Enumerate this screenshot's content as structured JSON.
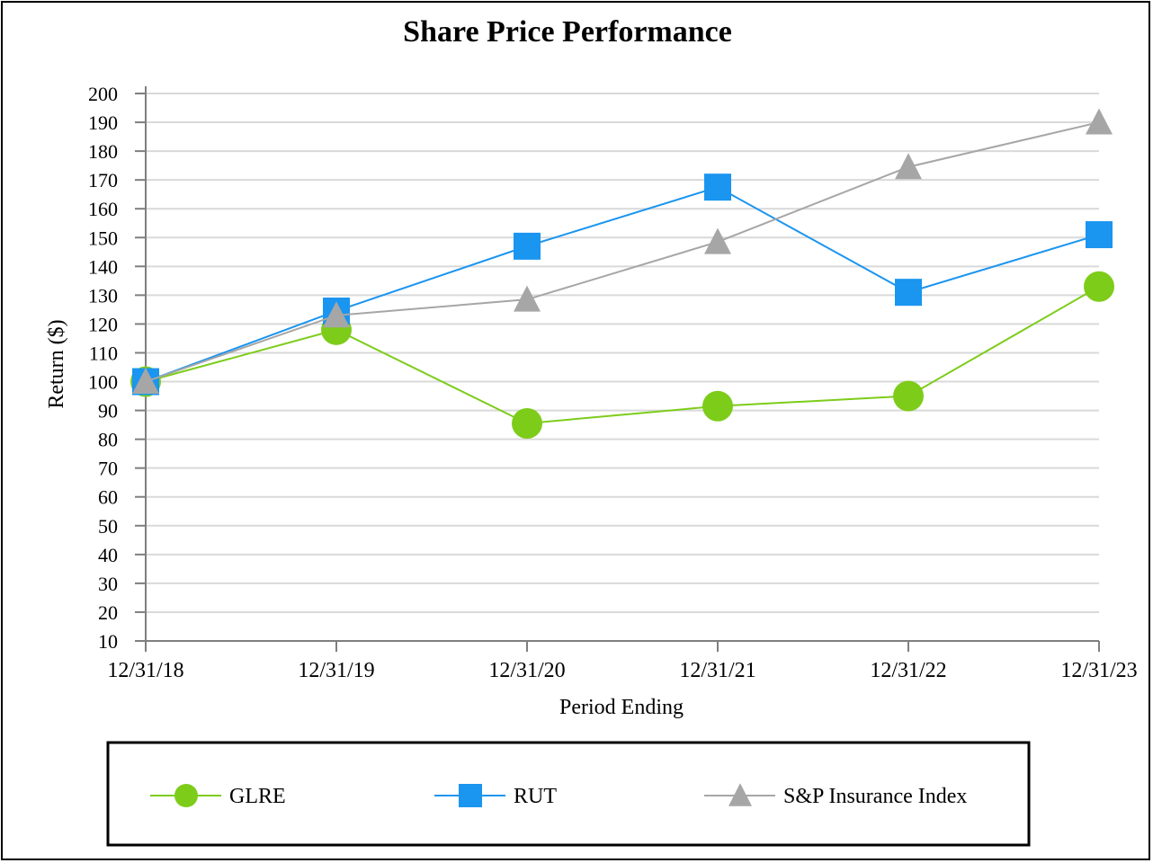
{
  "chart_data": {
    "type": "line",
    "title": "Share Price Performance",
    "xlabel": "Period Ending",
    "ylabel": "Return ($)",
    "categories": [
      "12/31/18",
      "12/31/19",
      "12/31/20",
      "12/31/21",
      "12/31/22",
      "12/31/23"
    ],
    "ylim": [
      10,
      200
    ],
    "yticks": [
      200,
      190,
      180,
      170,
      160,
      150,
      140,
      130,
      120,
      110,
      100,
      90,
      80,
      70,
      60,
      50,
      40,
      30,
      20,
      10
    ],
    "grid": true,
    "legend_position": "bottom",
    "series": [
      {
        "name": "GLRE",
        "marker": "circle",
        "color": "#7DCC1A",
        "values": [
          100,
          118,
          85.5,
          91.5,
          95,
          133
        ]
      },
      {
        "name": "RUT",
        "marker": "square",
        "color": "#1A95F0",
        "values": [
          100,
          124.5,
          147,
          167.5,
          131,
          151
        ]
      },
      {
        "name": "S&P Insurance Index",
        "marker": "triangle",
        "color": "#A6A6A6",
        "values": [
          100,
          123,
          128.5,
          148.5,
          174.5,
          190
        ]
      }
    ]
  }
}
